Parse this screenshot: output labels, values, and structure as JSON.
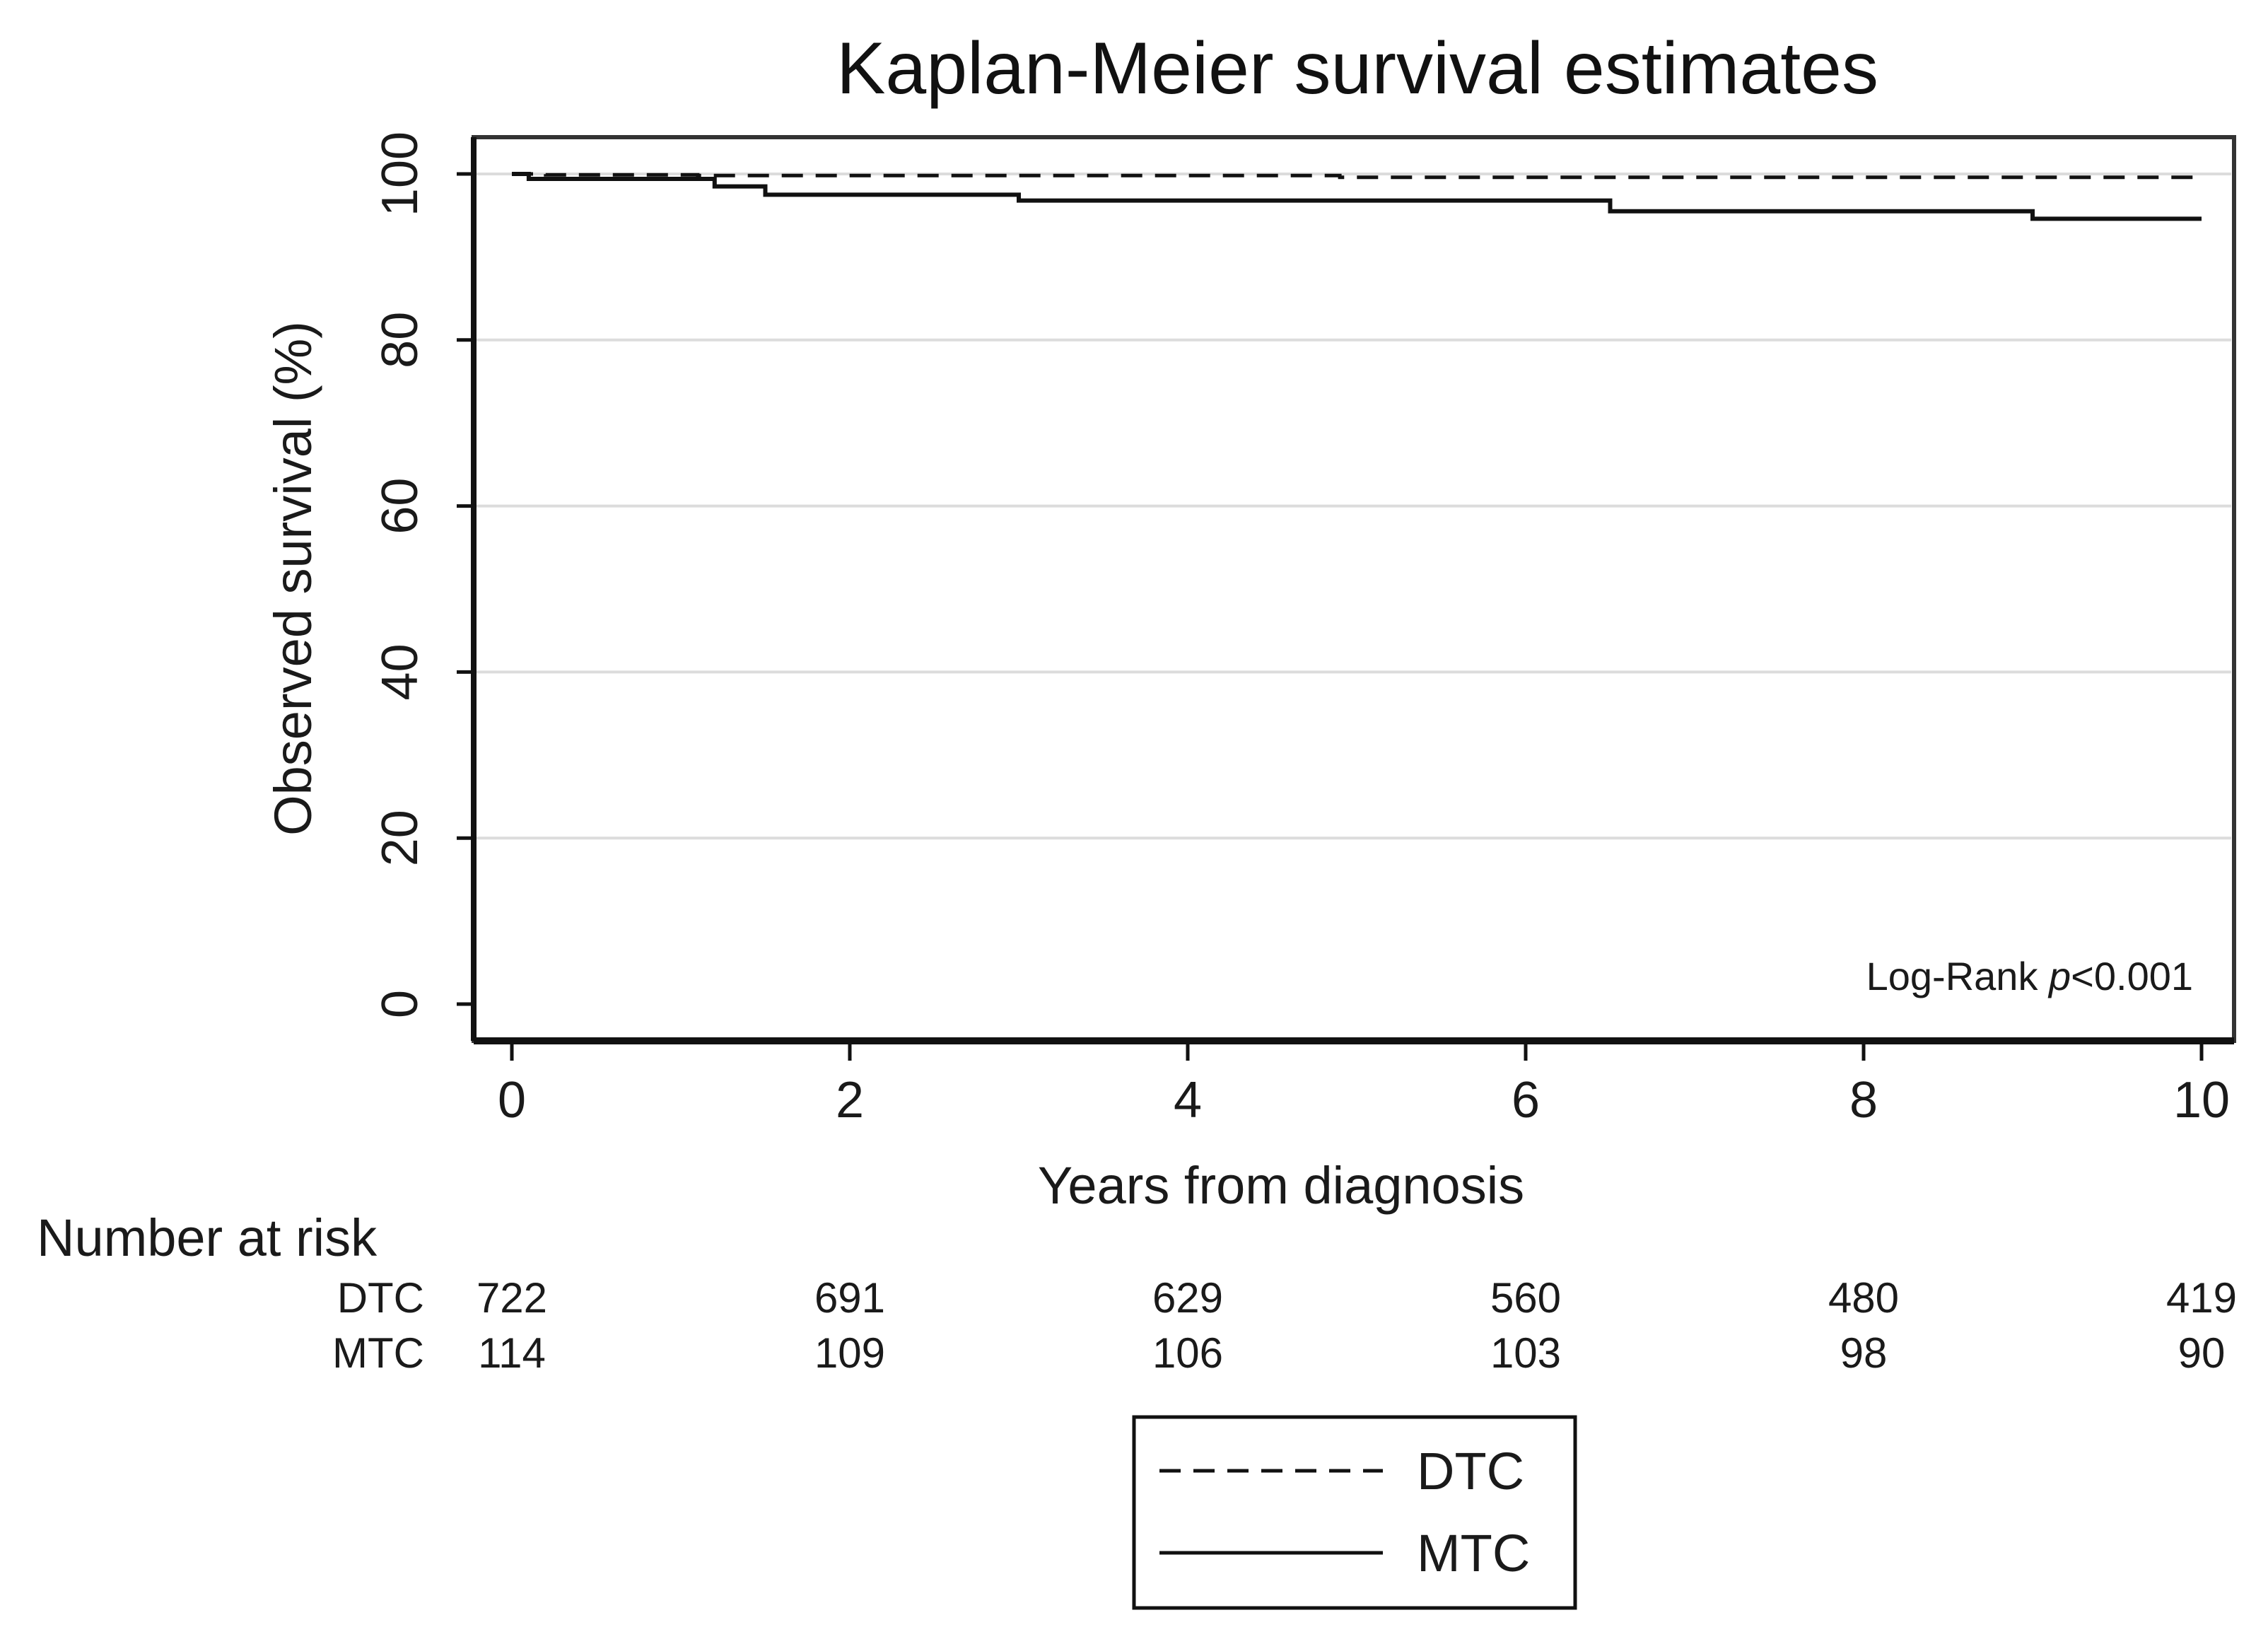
{
  "chart_data": {
    "type": "line",
    "title": "Kaplan-Meier survival estimates",
    "xlabel": "Years from diagnosis",
    "ylabel": "Observed survival (%)",
    "xlim": [
      0,
      10
    ],
    "ylim": [
      0,
      100
    ],
    "x_ticks": [
      0,
      2,
      4,
      6,
      8,
      10
    ],
    "y_ticks": [
      0,
      20,
      40,
      60,
      80,
      100
    ],
    "grid": "horizontal",
    "annotation": {
      "prefix": "Log-Rank ",
      "italic": "p",
      "suffix": "<0.001"
    },
    "series": [
      {
        "name": "DTC",
        "style": "dashed",
        "steps": [
          [
            0,
            100
          ],
          [
            0.2,
            99.9
          ],
          [
            1.1,
            99.8
          ],
          [
            4.9,
            99.6
          ],
          [
            10,
            99.6
          ]
        ]
      },
      {
        "name": "MTC",
        "style": "solid",
        "steps": [
          [
            0,
            100
          ],
          [
            0.1,
            99.4
          ],
          [
            1.2,
            98.5
          ],
          [
            1.5,
            97.5
          ],
          [
            3.0,
            96.8
          ],
          [
            6.5,
            95.5
          ],
          [
            9.0,
            94.6
          ],
          [
            10,
            94.6
          ]
        ]
      }
    ],
    "risk_table": {
      "heading": "Number at risk",
      "times": [
        0,
        2,
        4,
        6,
        8,
        10
      ],
      "rows": [
        {
          "label": "DTC",
          "values": [
            "722",
            "691",
            "629",
            "560",
            "480",
            "419"
          ]
        },
        {
          "label": "MTC",
          "values": [
            "114",
            "109",
            "106",
            "103",
            "98",
            "90"
          ]
        }
      ]
    },
    "legend": {
      "position": "bottom-center",
      "entries": [
        {
          "label": "DTC",
          "style": "dashed"
        },
        {
          "label": "MTC",
          "style": "solid"
        }
      ]
    }
  }
}
